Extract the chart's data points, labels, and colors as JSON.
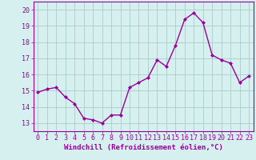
{
  "x": [
    0,
    1,
    2,
    3,
    4,
    5,
    6,
    7,
    8,
    9,
    10,
    11,
    12,
    13,
    14,
    15,
    16,
    17,
    18,
    19,
    20,
    21,
    22,
    23
  ],
  "y": [
    14.9,
    15.1,
    15.2,
    14.6,
    14.2,
    13.3,
    13.2,
    13.0,
    13.5,
    13.5,
    15.2,
    15.5,
    15.8,
    16.9,
    16.5,
    17.8,
    19.4,
    19.8,
    19.2,
    17.2,
    16.9,
    16.7,
    15.5,
    15.9
  ],
  "line_color": "#990099",
  "marker": "D",
  "markersize": 2.0,
  "linewidth": 1.0,
  "xlabel": "Windchill (Refroidissement éolien,°C)",
  "xlabel_fontsize": 6.5,
  "background_color": "#d6f0f0",
  "grid_color": "#b0d0d0",
  "tick_label_fontsize": 6,
  "ylim": [
    12.5,
    20.5
  ],
  "yticks": [
    13,
    14,
    15,
    16,
    17,
    18,
    19,
    20
  ],
  "xticks": [
    0,
    1,
    2,
    3,
    4,
    5,
    6,
    7,
    8,
    9,
    10,
    11,
    12,
    13,
    14,
    15,
    16,
    17,
    18,
    19,
    20,
    21,
    22,
    23
  ],
  "xlim": [
    -0.5,
    23.5
  ]
}
